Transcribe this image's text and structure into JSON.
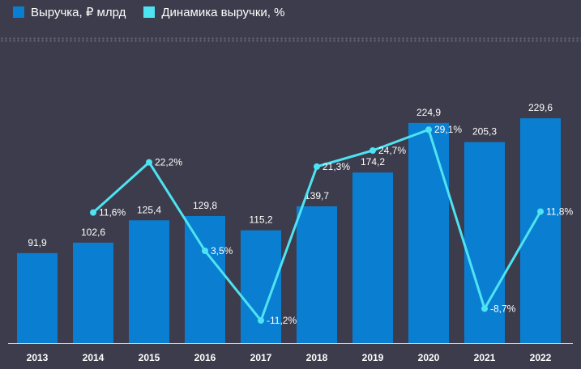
{
  "legend": {
    "revenue_label": "Выручка, ₽ млрд",
    "dynamics_label": "Динамика выручки, %"
  },
  "colors": {
    "background": "#3c3c4c",
    "bar": "#0a7fd1",
    "line": "#4ee3f2",
    "axis": "#cfcfcf"
  },
  "chart_data": {
    "type": "bar",
    "categories": [
      "2013",
      "2014",
      "2015",
      "2016",
      "2017",
      "2018",
      "2019",
      "2020",
      "2021",
      "2022"
    ],
    "series": [
      {
        "name": "Выручка, ₽ млрд",
        "type": "bar",
        "values": [
          91.9,
          102.6,
          125.4,
          129.8,
          115.2,
          139.7,
          174.2,
          224.9,
          205.3,
          229.6
        ],
        "labels": [
          "91,9",
          "102,6",
          "125,4",
          "129,8",
          "115,2",
          "139,7",
          "174,2",
          "224,9",
          "205,3",
          "229,6"
        ]
      },
      {
        "name": "Динамика выручки, %",
        "type": "line",
        "values": [
          null,
          11.6,
          22.2,
          3.5,
          -11.2,
          21.3,
          24.7,
          29.1,
          -8.7,
          11.8
        ],
        "labels": [
          null,
          "11,6%",
          "22,2%",
          "3,5%",
          "-11,2%",
          "21,3%",
          "24,7%",
          "29,1%",
          "-8,7%",
          "11,8%"
        ]
      }
    ],
    "legend_position": "top-left",
    "grid": false
  }
}
